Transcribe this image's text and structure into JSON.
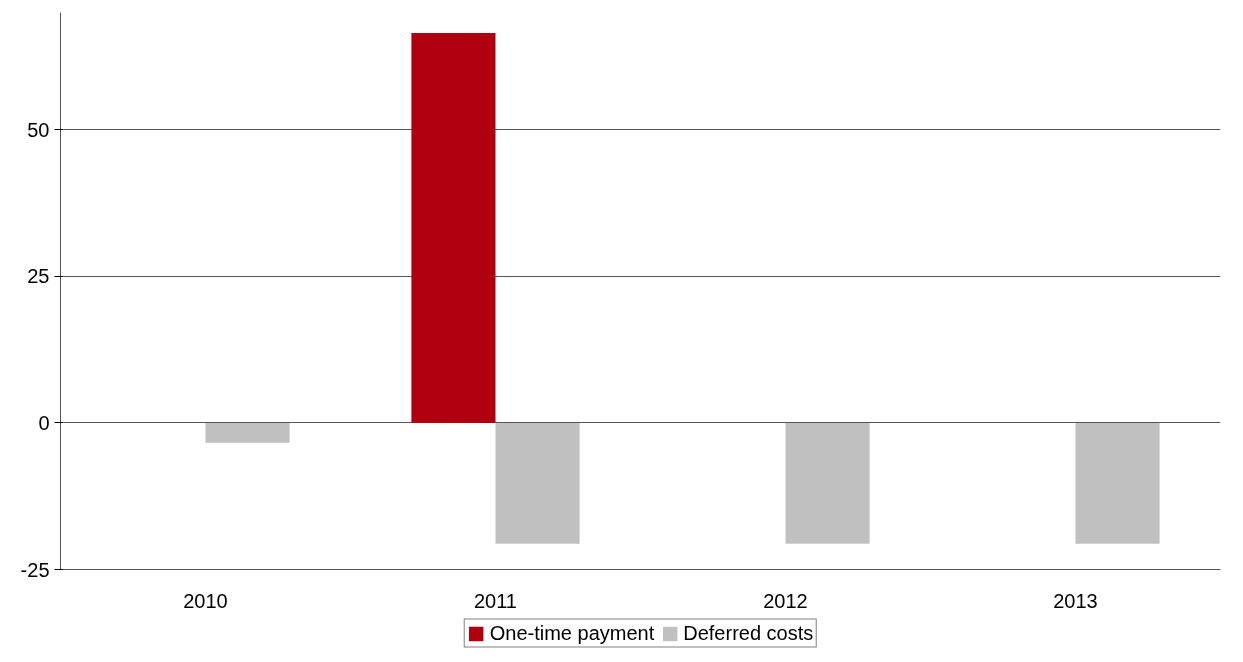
{
  "chart_data": {
    "type": "bar",
    "categories": [
      "2010",
      "2011",
      "2012",
      "2013"
    ],
    "series": [
      {
        "name": "One-time payment",
        "color": "#b0000f",
        "values": [
          null,
          66.5,
          null,
          null
        ]
      },
      {
        "name": "Deferred costs",
        "color": "#c0c0c0",
        "values": [
          -3.4,
          -20.6,
          -20.6,
          -20.6
        ]
      }
    ],
    "ylim": [
      -25,
      70
    ],
    "yticks": [
      -25,
      0,
      25,
      50
    ],
    "grid": "y",
    "legend": "bottom"
  }
}
